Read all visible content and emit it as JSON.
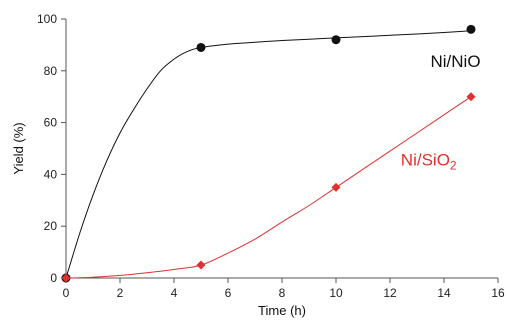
{
  "chart_data": {
    "type": "scatter",
    "xlabel": "Time (h)",
    "ylabel": "Yield (%)",
    "xlim": [
      0,
      16
    ],
    "ylim": [
      0,
      100
    ],
    "x_ticks": [
      "0",
      "2",
      "4",
      "6",
      "8",
      "10",
      "12",
      "14",
      "16"
    ],
    "y_ticks": [
      "0",
      "20",
      "40",
      "60",
      "80",
      "100"
    ],
    "grid": false,
    "legend": "none",
    "series": [
      {
        "name": "Ni/NiO",
        "label_main": "Ni/NiO",
        "label_sub": "",
        "color": "#111111",
        "marker": "circle",
        "x": [
          0,
          5,
          10,
          15
        ],
        "y": [
          0,
          89,
          92,
          96
        ],
        "fit_curve": {
          "x": [
            0,
            0.5,
            1,
            1.5,
            2,
            2.5,
            3,
            3.5,
            4,
            4.5,
            5,
            6,
            7,
            8,
            9,
            10,
            11,
            12,
            13,
            14,
            15
          ],
          "y": [
            0,
            17,
            32,
            45,
            56,
            65,
            73,
            80,
            84.5,
            87.5,
            89,
            90.3,
            91,
            91.7,
            92.2,
            92.7,
            93.2,
            93.7,
            94.2,
            94.8,
            95.5
          ]
        }
      },
      {
        "name": "Ni/SiO2",
        "label_main": "Ni/SiO",
        "label_sub": "2",
        "color": "#e03030",
        "marker": "diamond",
        "x": [
          0,
          5,
          10,
          15
        ],
        "y": [
          0,
          5,
          35,
          70
        ],
        "fit_curve": {
          "x": [
            0,
            1,
            2,
            3,
            4,
            5,
            6,
            7,
            8,
            9,
            10,
            11,
            12,
            13,
            14,
            15
          ],
          "y": [
            0,
            0.3,
            1,
            2,
            3.3,
            5,
            9.6,
            15,
            21.6,
            28,
            35,
            42,
            49,
            56,
            63,
            70
          ]
        }
      }
    ]
  }
}
